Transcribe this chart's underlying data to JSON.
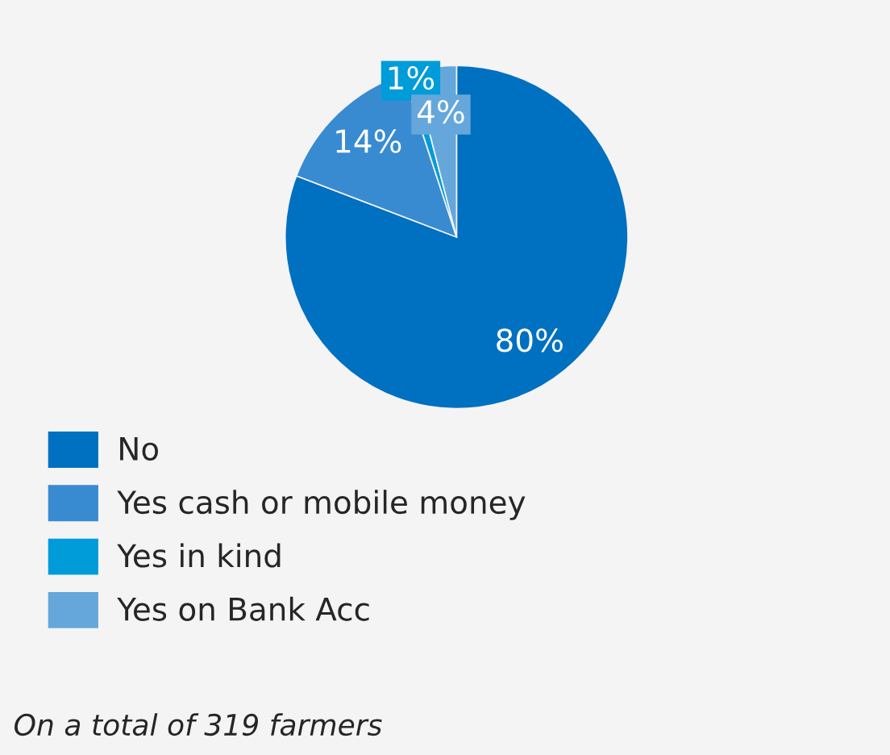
{
  "chart_data": {
    "type": "pie",
    "categories": [
      "No",
      "Yes cash or mobile money",
      "Yes in kind",
      "Yes on Bank Acc"
    ],
    "values": [
      80,
      14,
      1,
      4
    ],
    "colors": [
      "#0070c0",
      "#398bd1",
      "#009cd9",
      "#65a7db"
    ],
    "value_labels": [
      "80%",
      "14%",
      "1%",
      "4%"
    ],
    "legend": "bottom left",
    "annotations": [
      "On a total of 319 farmers"
    ]
  }
}
